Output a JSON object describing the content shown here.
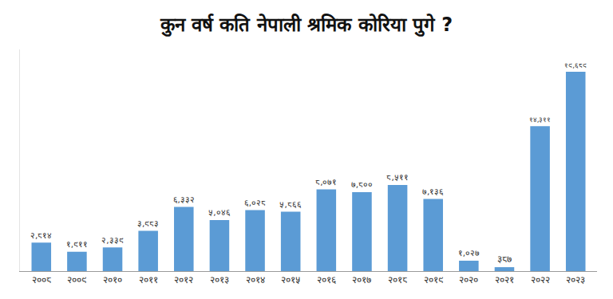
{
  "chart_data": {
    "type": "bar",
    "title": "कुन वर्ष कति नेपाली श्रमिक कोरिया पुगे ?",
    "categories": [
      "२००८",
      "२००९",
      "२०१०",
      "२०११",
      "२०१२",
      "२०१३",
      "२०१४",
      "२०१५",
      "२०१६",
      "२०१७",
      "२०१८",
      "२०१९",
      "२०२०",
      "२०२१",
      "२०२२",
      "२०२३"
    ],
    "values": [
      2814,
      1911,
      2339,
      3983,
      6332,
      5046,
      6028,
      5866,
      8071,
      7800,
      8511,
      7136,
      1027,
      387,
      14311,
      19689
    ],
    "value_labels": [
      "२,८१४",
      "१,९११",
      "२,३३९",
      "३,९८३",
      "६,३३२",
      "५,०४६",
      "६,०२८",
      "५,८६६",
      "८,०७१",
      "७,८००",
      "८,५११",
      "७,१३६",
      "१,०२७",
      "३८७",
      "१४,३११",
      "१९,६८९"
    ],
    "color": "#5b9bd5",
    "ylim": [
      0,
      21900
    ],
    "grid": false,
    "data_labels": true,
    "tick_labels": "x"
  }
}
